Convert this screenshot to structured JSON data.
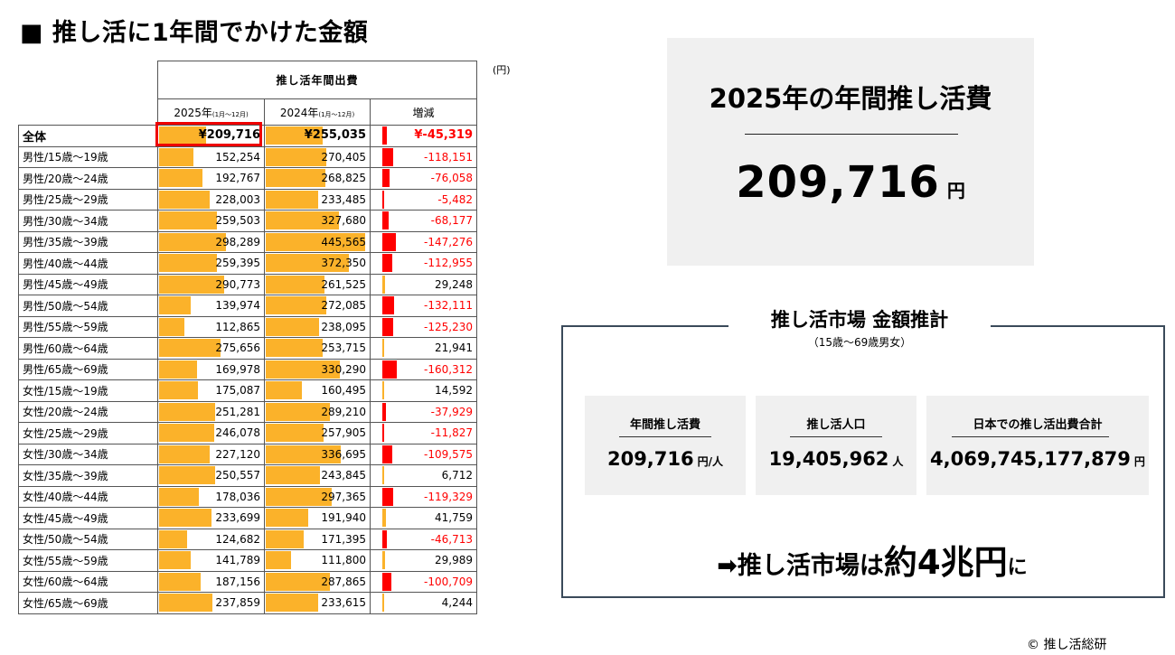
{
  "title": "■ 推し活に1年間でかけた金額",
  "unit_note": "(円)",
  "table": {
    "header_main": "推し活年間出費",
    "col_2025": "2025年",
    "col_2025_sub": "(1月～12月)",
    "col_2024": "2024年",
    "col_2024_sub": "(1月～12月)",
    "col_diff": "増減"
  },
  "chart_data": {
    "type": "table",
    "columns": [
      "2025年",
      "2024年",
      "増減"
    ],
    "rows": [
      {
        "label": "全体",
        "y2025": 209716,
        "y2024": 255035,
        "diff": -45319,
        "y2025_text": "¥209,716",
        "y2024_text": "¥255,035",
        "diff_text": "¥-45,319"
      },
      {
        "label": "男性/15歳～19歳",
        "y2025": 152254,
        "y2024": 270405,
        "diff": -118151,
        "y2025_text": "152,254",
        "y2024_text": "270,405",
        "diff_text": "-118,151"
      },
      {
        "label": "男性/20歳～24歳",
        "y2025": 192767,
        "y2024": 268825,
        "diff": -76058,
        "y2025_text": "192,767",
        "y2024_text": "268,825",
        "diff_text": "-76,058"
      },
      {
        "label": "男性/25歳～29歳",
        "y2025": 228003,
        "y2024": 233485,
        "diff": -5482,
        "y2025_text": "228,003",
        "y2024_text": "233,485",
        "diff_text": "-5,482"
      },
      {
        "label": "男性/30歳～34歳",
        "y2025": 259503,
        "y2024": 327680,
        "diff": -68177,
        "y2025_text": "259,503",
        "y2024_text": "327,680",
        "diff_text": "-68,177"
      },
      {
        "label": "男性/35歳～39歳",
        "y2025": 298289,
        "y2024": 445565,
        "diff": -147276,
        "y2025_text": "298,289",
        "y2024_text": "445,565",
        "diff_text": "-147,276"
      },
      {
        "label": "男性/40歳～44歳",
        "y2025": 259395,
        "y2024": 372350,
        "diff": -112955,
        "y2025_text": "259,395",
        "y2024_text": "372,350",
        "diff_text": "-112,955"
      },
      {
        "label": "男性/45歳～49歳",
        "y2025": 290773,
        "y2024": 261525,
        "diff": 29248,
        "y2025_text": "290,773",
        "y2024_text": "261,525",
        "diff_text": "29,248"
      },
      {
        "label": "男性/50歳～54歳",
        "y2025": 139974,
        "y2024": 272085,
        "diff": -132111,
        "y2025_text": "139,974",
        "y2024_text": "272,085",
        "diff_text": "-132,111"
      },
      {
        "label": "男性/55歳～59歳",
        "y2025": 112865,
        "y2024": 238095,
        "diff": -125230,
        "y2025_text": "112,865",
        "y2024_text": "238,095",
        "diff_text": "-125,230"
      },
      {
        "label": "男性/60歳～64歳",
        "y2025": 275656,
        "y2024": 253715,
        "diff": 21941,
        "y2025_text": "275,656",
        "y2024_text": "253,715",
        "diff_text": "21,941"
      },
      {
        "label": "男性/65歳～69歳",
        "y2025": 169978,
        "y2024": 330290,
        "diff": -160312,
        "y2025_text": "169,978",
        "y2024_text": "330,290",
        "diff_text": "-160,312"
      },
      {
        "label": "女性/15歳～19歳",
        "y2025": 175087,
        "y2024": 160495,
        "diff": 14592,
        "y2025_text": "175,087",
        "y2024_text": "160,495",
        "diff_text": "14,592"
      },
      {
        "label": "女性/20歳～24歳",
        "y2025": 251281,
        "y2024": 289210,
        "diff": -37929,
        "y2025_text": "251,281",
        "y2024_text": "289,210",
        "diff_text": "-37,929"
      },
      {
        "label": "女性/25歳～29歳",
        "y2025": 246078,
        "y2024": 257905,
        "diff": -11827,
        "y2025_text": "246,078",
        "y2024_text": "257,905",
        "diff_text": "-11,827"
      },
      {
        "label": "女性/30歳～34歳",
        "y2025": 227120,
        "y2024": 336695,
        "diff": -109575,
        "y2025_text": "227,120",
        "y2024_text": "336,695",
        "diff_text": "-109,575"
      },
      {
        "label": "女性/35歳～39歳",
        "y2025": 250557,
        "y2024": 243845,
        "diff": 6712,
        "y2025_text": "250,557",
        "y2024_text": "243,845",
        "diff_text": "6,712"
      },
      {
        "label": "女性/40歳～44歳",
        "y2025": 178036,
        "y2024": 297365,
        "diff": -119329,
        "y2025_text": "178,036",
        "y2024_text": "297,365",
        "diff_text": "-119,329"
      },
      {
        "label": "女性/45歳～49歳",
        "y2025": 233699,
        "y2024": 191940,
        "diff": 41759,
        "y2025_text": "233,699",
        "y2024_text": "191,940",
        "diff_text": "41,759"
      },
      {
        "label": "女性/50歳～54歳",
        "y2025": 124682,
        "y2024": 171395,
        "diff": -46713,
        "y2025_text": "124,682",
        "y2024_text": "171,395",
        "diff_text": "-46,713"
      },
      {
        "label": "女性/55歳～59歳",
        "y2025": 141789,
        "y2024": 111800,
        "diff": 29989,
        "y2025_text": "141,789",
        "y2024_text": "111,800",
        "diff_text": "29,989"
      },
      {
        "label": "女性/60歳～64歳",
        "y2025": 187156,
        "y2024": 287865,
        "diff": -100709,
        "y2025_text": "187,156",
        "y2024_text": "287,865",
        "diff_text": "-100,709"
      },
      {
        "label": "女性/65歳～69歳",
        "y2025": 237859,
        "y2024": 233615,
        "diff": 4244,
        "y2025_text": "237,859",
        "y2024_text": "233,615",
        "diff_text": "4,244"
      }
    ],
    "bar_max": 445565,
    "colors": {
      "bar": "#FBB22A",
      "negative_bar": "#FF0000",
      "positive_bar": "#FBB22A",
      "negative_text": "#FF0000",
      "highlight_box": "#EE0000"
    }
  },
  "annual_card": {
    "title": "2025年の年間推し活費",
    "value": "209,716",
    "unit": "円"
  },
  "market": {
    "title": "推し活市場 金額推計",
    "subtitle": "（15歳～69歳男女）",
    "cards": [
      {
        "label": "年間推し活費",
        "value": "209,716",
        "unit": "円/人"
      },
      {
        "label": "推し活人口",
        "value": "19,405,962",
        "unit": "人"
      },
      {
        "label": "日本での推し活出費合計",
        "value": "4,069,745,177,879",
        "unit": "円"
      }
    ],
    "conclusion_arrow": "➡",
    "conclusion_a": "推し活市場は",
    "conclusion_b": "約4兆円",
    "conclusion_c": "に"
  },
  "copyright": "© 推し活総研"
}
